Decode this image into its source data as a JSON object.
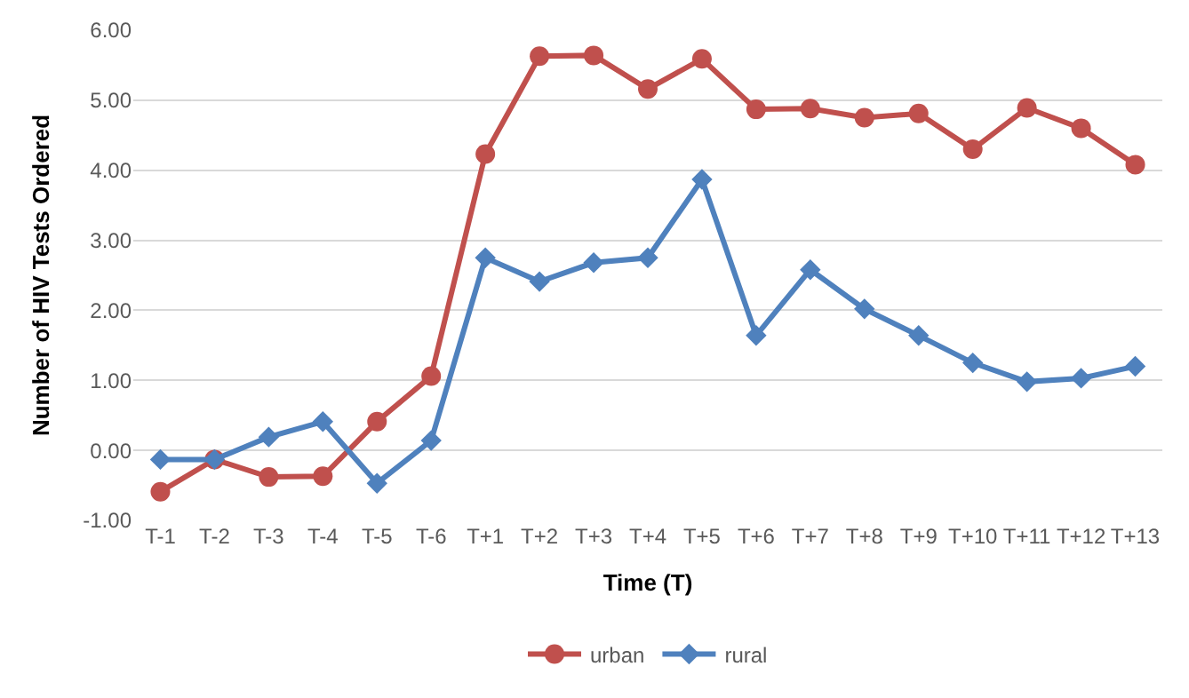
{
  "chart_data": {
    "type": "line",
    "xlabel": "Time (T)",
    "ylabel": "Number of HIV Tests Ordered",
    "categories": [
      "T-1",
      "T-2",
      "T-3",
      "T-4",
      "T-5",
      "T-6",
      "T+1",
      "T+2",
      "T+3",
      "T+4",
      "T+5",
      "T+6",
      "T+7",
      "T+8",
      "T+9",
      "T+10",
      "T+11",
      "T+12",
      "T+13"
    ],
    "series": [
      {
        "name": "urban",
        "color": "#c0504d",
        "marker": "circle",
        "values": [
          -0.59,
          -0.13,
          -0.38,
          -0.37,
          0.41,
          1.06,
          4.23,
          5.63,
          5.64,
          5.16,
          5.59,
          4.87,
          4.88,
          4.75,
          4.81,
          4.3,
          4.89,
          4.6,
          4.08
        ]
      },
      {
        "name": "rural",
        "color": "#4f81bd",
        "marker": "diamond",
        "values": [
          -0.13,
          -0.13,
          0.19,
          0.41,
          -0.47,
          0.14,
          2.75,
          2.41,
          2.68,
          2.75,
          3.87,
          1.64,
          2.58,
          2.02,
          1.64,
          1.25,
          0.98,
          1.03,
          1.2
        ]
      }
    ],
    "ylim": [
      -1,
      6
    ],
    "yticks": [
      {
        "value": -1,
        "label": "-1.00"
      },
      {
        "value": 0,
        "label": "0.00"
      },
      {
        "value": 1,
        "label": "1.00"
      },
      {
        "value": 2,
        "label": "2.00"
      },
      {
        "value": 3,
        "label": "3.00"
      },
      {
        "value": 4,
        "label": "4.00"
      },
      {
        "value": 5,
        "label": "5.00"
      },
      {
        "value": 6,
        "label": "6.00"
      }
    ],
    "grid": "y",
    "legend": "bottom",
    "line_style": "solid"
  }
}
